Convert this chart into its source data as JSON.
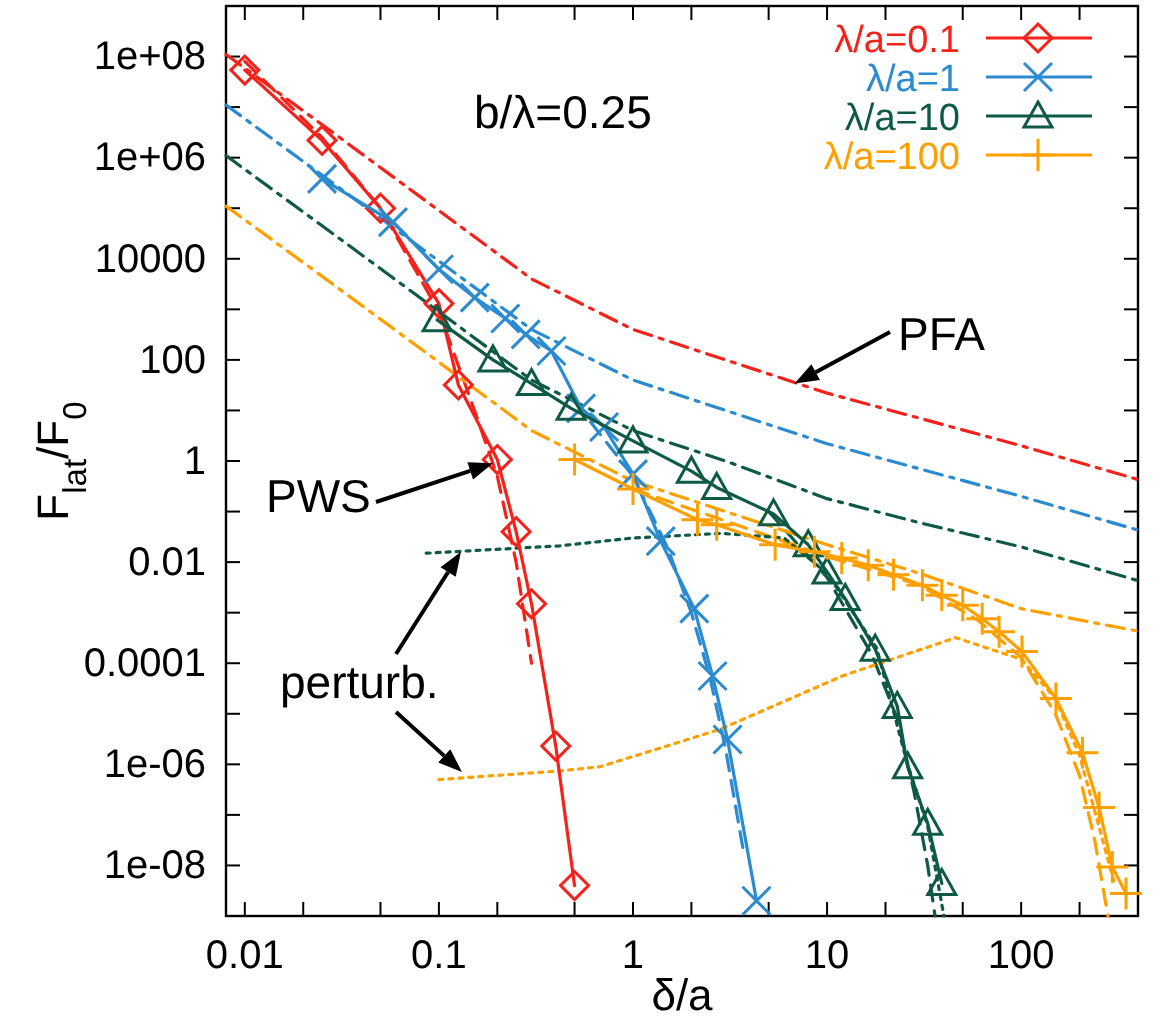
{
  "chart_data": {
    "type": "line",
    "xlabel": "δ/a",
    "ylabel": "F$_{lat}$/F$_{0}$",
    "log": "xy",
    "legend": "top right",
    "xlim": [
      0.008,
      400
    ],
    "ylim": [
      1e-09,
      1000000000.0
    ],
    "xticks": [
      0.01,
      {
        "value": 0.02,
        "label": null
      },
      {
        "value": 0.05,
        "label": null
      },
      0.1,
      {
        "value": 0.2,
        "label": null
      },
      {
        "value": 0.5,
        "label": null
      },
      1,
      {
        "value": 2,
        "label": null
      },
      {
        "value": 5,
        "label": null
      },
      10,
      {
        "value": 20,
        "label": null
      },
      {
        "value": 50,
        "label": null
      },
      100,
      {
        "value": 200,
        "label": null
      }
    ],
    "yticks": [
      {
        "value": 100000000.0,
        "label": "1e+08"
      },
      {
        "value": 10000000.0,
        "label": null
      },
      {
        "value": 1000000.0,
        "label": "1e+06"
      },
      {
        "value": 100000.0,
        "label": null
      },
      10000,
      {
        "value": 1000,
        "label": null
      },
      100,
      {
        "value": 10,
        "label": null
      },
      1,
      {
        "value": 0.1,
        "label": null
      },
      0.01,
      {
        "value": 0.001,
        "label": null
      },
      0.0001,
      {
        "value": 1e-05,
        "label": null
      },
      {
        "value": 1e-06,
        "label": "1e-06"
      },
      {
        "value": 1e-07,
        "label": null
      },
      {
        "value": 1e-08,
        "label": "1e-08"
      }
    ],
    "annotations": [
      "b/λ=0.25",
      {
        "text": "PFA",
        "x": 6.8,
        "y": 34
      },
      {
        "text": "PWS",
        "x": 0.19,
        "y": 0.9
      },
      {
        "text": "perturb.",
        "x": 0.13,
        "y": 0.016
      }
    ],
    "series": [
      {
        "name": "λ/a=0.1",
        "color": "#f5221b",
        "marker": "diamond",
        "line_style": "solid",
        "x": [
          0.01,
          0.025,
          0.05,
          0.1,
          0.126,
          0.2,
          0.25,
          0.3,
          0.4,
          0.5
        ],
        "values": [
          54000000.0,
          2200000.0,
          100000.0,
          1300,
          32,
          1.07,
          0.04,
          0.0015,
          2.3e-06,
          4e-09
        ]
      },
      {
        "name": "λ/a=1",
        "color": "#2a8bd0",
        "marker": "x",
        "line_style": "solid",
        "x": [
          0.025,
          0.058,
          0.1,
          0.153,
          0.22,
          0.28,
          0.38,
          0.54,
          0.71,
          1.0,
          1.39,
          2.07,
          2.57,
          3.07,
          4.33
        ],
        "values": [
          380000.0,
          53000.0,
          6200,
          1700,
          660,
          320,
          150,
          11,
          4.7,
          0.55,
          0.026,
          0.0012,
          5.6e-05,
          3.1e-06,
          2e-09
        ]
      },
      {
        "name": "λ/a=10",
        "color": "#0f5a45",
        "marker": "triangle",
        "line_style": "solid",
        "x": [
          0.098,
          0.19,
          0.3,
          0.48,
          1.0,
          2.0,
          2.7,
          5.3,
          8,
          10,
          12.4,
          17.7,
          23,
          26,
          33,
          39
        ],
        "values": [
          620,
          100,
          34,
          11,
          2.5,
          0.63,
          0.3,
          0.09,
          0.022,
          0.0064,
          0.0019,
          0.00019,
          1.4e-05,
          9e-07,
          6.8e-08,
          4.4e-09
        ]
      },
      {
        "name": "λ/a=100",
        "color": "#ffa000",
        "marker": "cross",
        "line_style": "solid",
        "x": [
          0.5,
          1.0,
          2.15,
          2.7,
          5.4,
          8.6,
          11.9,
          16.3,
          22,
          31,
          39,
          50,
          63,
          77,
          101,
          151,
          207,
          252,
          295,
          347
        ],
        "values": [
          1.07,
          0.28,
          0.069,
          0.055,
          0.022,
          0.016,
          0.012,
          0.0087,
          0.0056,
          0.0035,
          0.0022,
          0.0014,
          0.00076,
          0.00042,
          0.00017,
          2e-05,
          1.7e-06,
          1.4e-07,
          9.3e-09,
          2.8e-09
        ]
      },
      {
        "color": "#f5221b",
        "marker": "none",
        "line_style": "dashed",
        "x": [
          0.01,
          0.025,
          0.05,
          0.1,
          0.15,
          0.2,
          0.25,
          0.3
        ],
        "values": [
          80000000.0,
          2500000.0,
          100000.0,
          900,
          12,
          0.5,
          0.01,
          0.0001
        ]
      },
      {
        "color": "#2a8bd0",
        "marker": "none",
        "line_style": "dashed",
        "x": [
          0.5,
          1,
          1.5,
          2,
          2.5,
          3,
          3.7
        ],
        "values": [
          15,
          0.5,
          0.02,
          0.001,
          5e-05,
          2e-06,
          2e-08
        ]
      },
      {
        "color": "#0f5a45",
        "marker": "none",
        "line_style": "dashed",
        "x": [
          5,
          10,
          17,
          23,
          28,
          33,
          36
        ],
        "values": [
          0.1,
          0.005,
          0.00015,
          8e-06,
          3e-07,
          1e-08,
          1e-09
        ]
      },
      {
        "color": "#ffa000",
        "marker": "none",
        "line_style": "dashed",
        "x": [
          1,
          10,
          30,
          60,
          100,
          150,
          200,
          240,
          280
        ],
        "values": [
          0.28,
          0.013,
          0.0035,
          0.0007,
          0.00013,
          1e-05,
          6e-07,
          3e-08,
          1e-09
        ]
      },
      {
        "color": "#f5221b",
        "marker": "none",
        "line_style": "dashdot",
        "x": [
          0.008,
          0.03,
          0.1,
          0.3,
          1,
          3,
          10,
          30,
          100,
          400
        ],
        "values": [
          110000000.0,
          2700000.0,
          90000.0,
          4000,
          400,
          100,
          22,
          7,
          2,
          0.43
        ]
      },
      {
        "color": "#2a8bd0",
        "marker": "none",
        "line_style": "dashdot",
        "x": [
          0.008,
          0.03,
          0.1,
          0.3,
          1,
          3,
          10,
          30,
          100,
          400
        ],
        "values": [
          11000000.0,
          270000.0,
          9000,
          400,
          40,
          10,
          2.2,
          0.7,
          0.2,
          0.043
        ]
      },
      {
        "color": "#0f5a45",
        "marker": "none",
        "line_style": "dashdot",
        "x": [
          0.008,
          0.03,
          0.1,
          0.3,
          1,
          3,
          10,
          30,
          100,
          400
        ],
        "values": [
          1100000.0,
          27000.0,
          900,
          40,
          4,
          1,
          0.18,
          0.06,
          0.02,
          0.0043
        ]
      },
      {
        "color": "#ffa000",
        "marker": "none",
        "line_style": "dashdot",
        "x": [
          0.008,
          0.03,
          0.1,
          0.3,
          1,
          3,
          10,
          30,
          100,
          400
        ],
        "values": [
          110000.0,
          2700,
          90,
          4,
          0.4,
          0.1,
          0.022,
          0.006,
          0.0012,
          0.00043
        ]
      },
      {
        "color": "#0f5a45",
        "marker": "none",
        "line_style": "dotted",
        "x": [
          0.086,
          0.42,
          1,
          2.85,
          6,
          10,
          18,
          26,
          33,
          40
        ],
        "values": [
          0.015,
          0.021,
          0.03,
          0.037,
          0.03,
          0.006,
          0.0002,
          1e-06,
          6e-08,
          1e-09
        ]
      },
      {
        "color": "#ffa000",
        "marker": "none",
        "line_style": "dotted",
        "x": [
          0.1,
          0.42,
          0.68,
          2.8,
          12,
          46,
          100,
          150,
          200,
          300
        ],
        "values": [
          5e-07,
          7.4e-07,
          9e-07,
          4.9e-06,
          5.6e-05,
          0.00032,
          0.00012,
          2e-05,
          1.5e-06,
          5e-09
        ]
      }
    ]
  }
}
